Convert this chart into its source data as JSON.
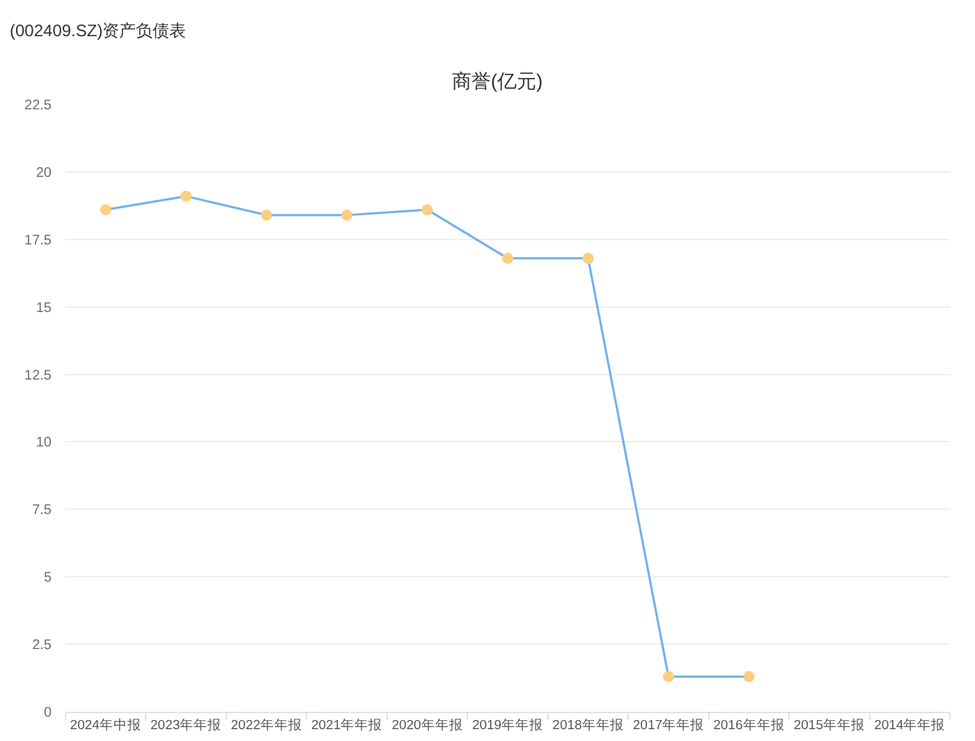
{
  "chart_data": {
    "type": "line",
    "title": "商誉(亿元)",
    "annotations": [
      "(002409.SZ)资产负债表"
    ],
    "categories": [
      "2024年中报",
      "2023年年报",
      "2022年年报",
      "2021年年报",
      "2020年年报",
      "2019年年报",
      "2018年年报",
      "2017年年报",
      "2016年年报",
      "2015年年报",
      "2014年年报"
    ],
    "series": [
      {
        "color": "#74b1ea",
        "colors": [
          "#fccf7f",
          "#fccf7f",
          "#fccf7f",
          "#fccf7f",
          "#fccf7f",
          "#fccf7f",
          "#fccf7f",
          "#fccf7f",
          "#fccf7f",
          "#fccf7f",
          "#fccf7f"
        ],
        "values": [
          18.6,
          19.1,
          18.4,
          18.4,
          18.6,
          16.8,
          16.8,
          1.3,
          1.3,
          null,
          null
        ]
      }
    ],
    "ylim": [
      0,
      22.5
    ],
    "yticks": [
      0,
      2.5,
      5,
      7.5,
      10,
      12.5,
      15,
      17.5,
      20,
      22.5
    ],
    "grid": "y",
    "marker": "circle",
    "line_style": "solid"
  }
}
